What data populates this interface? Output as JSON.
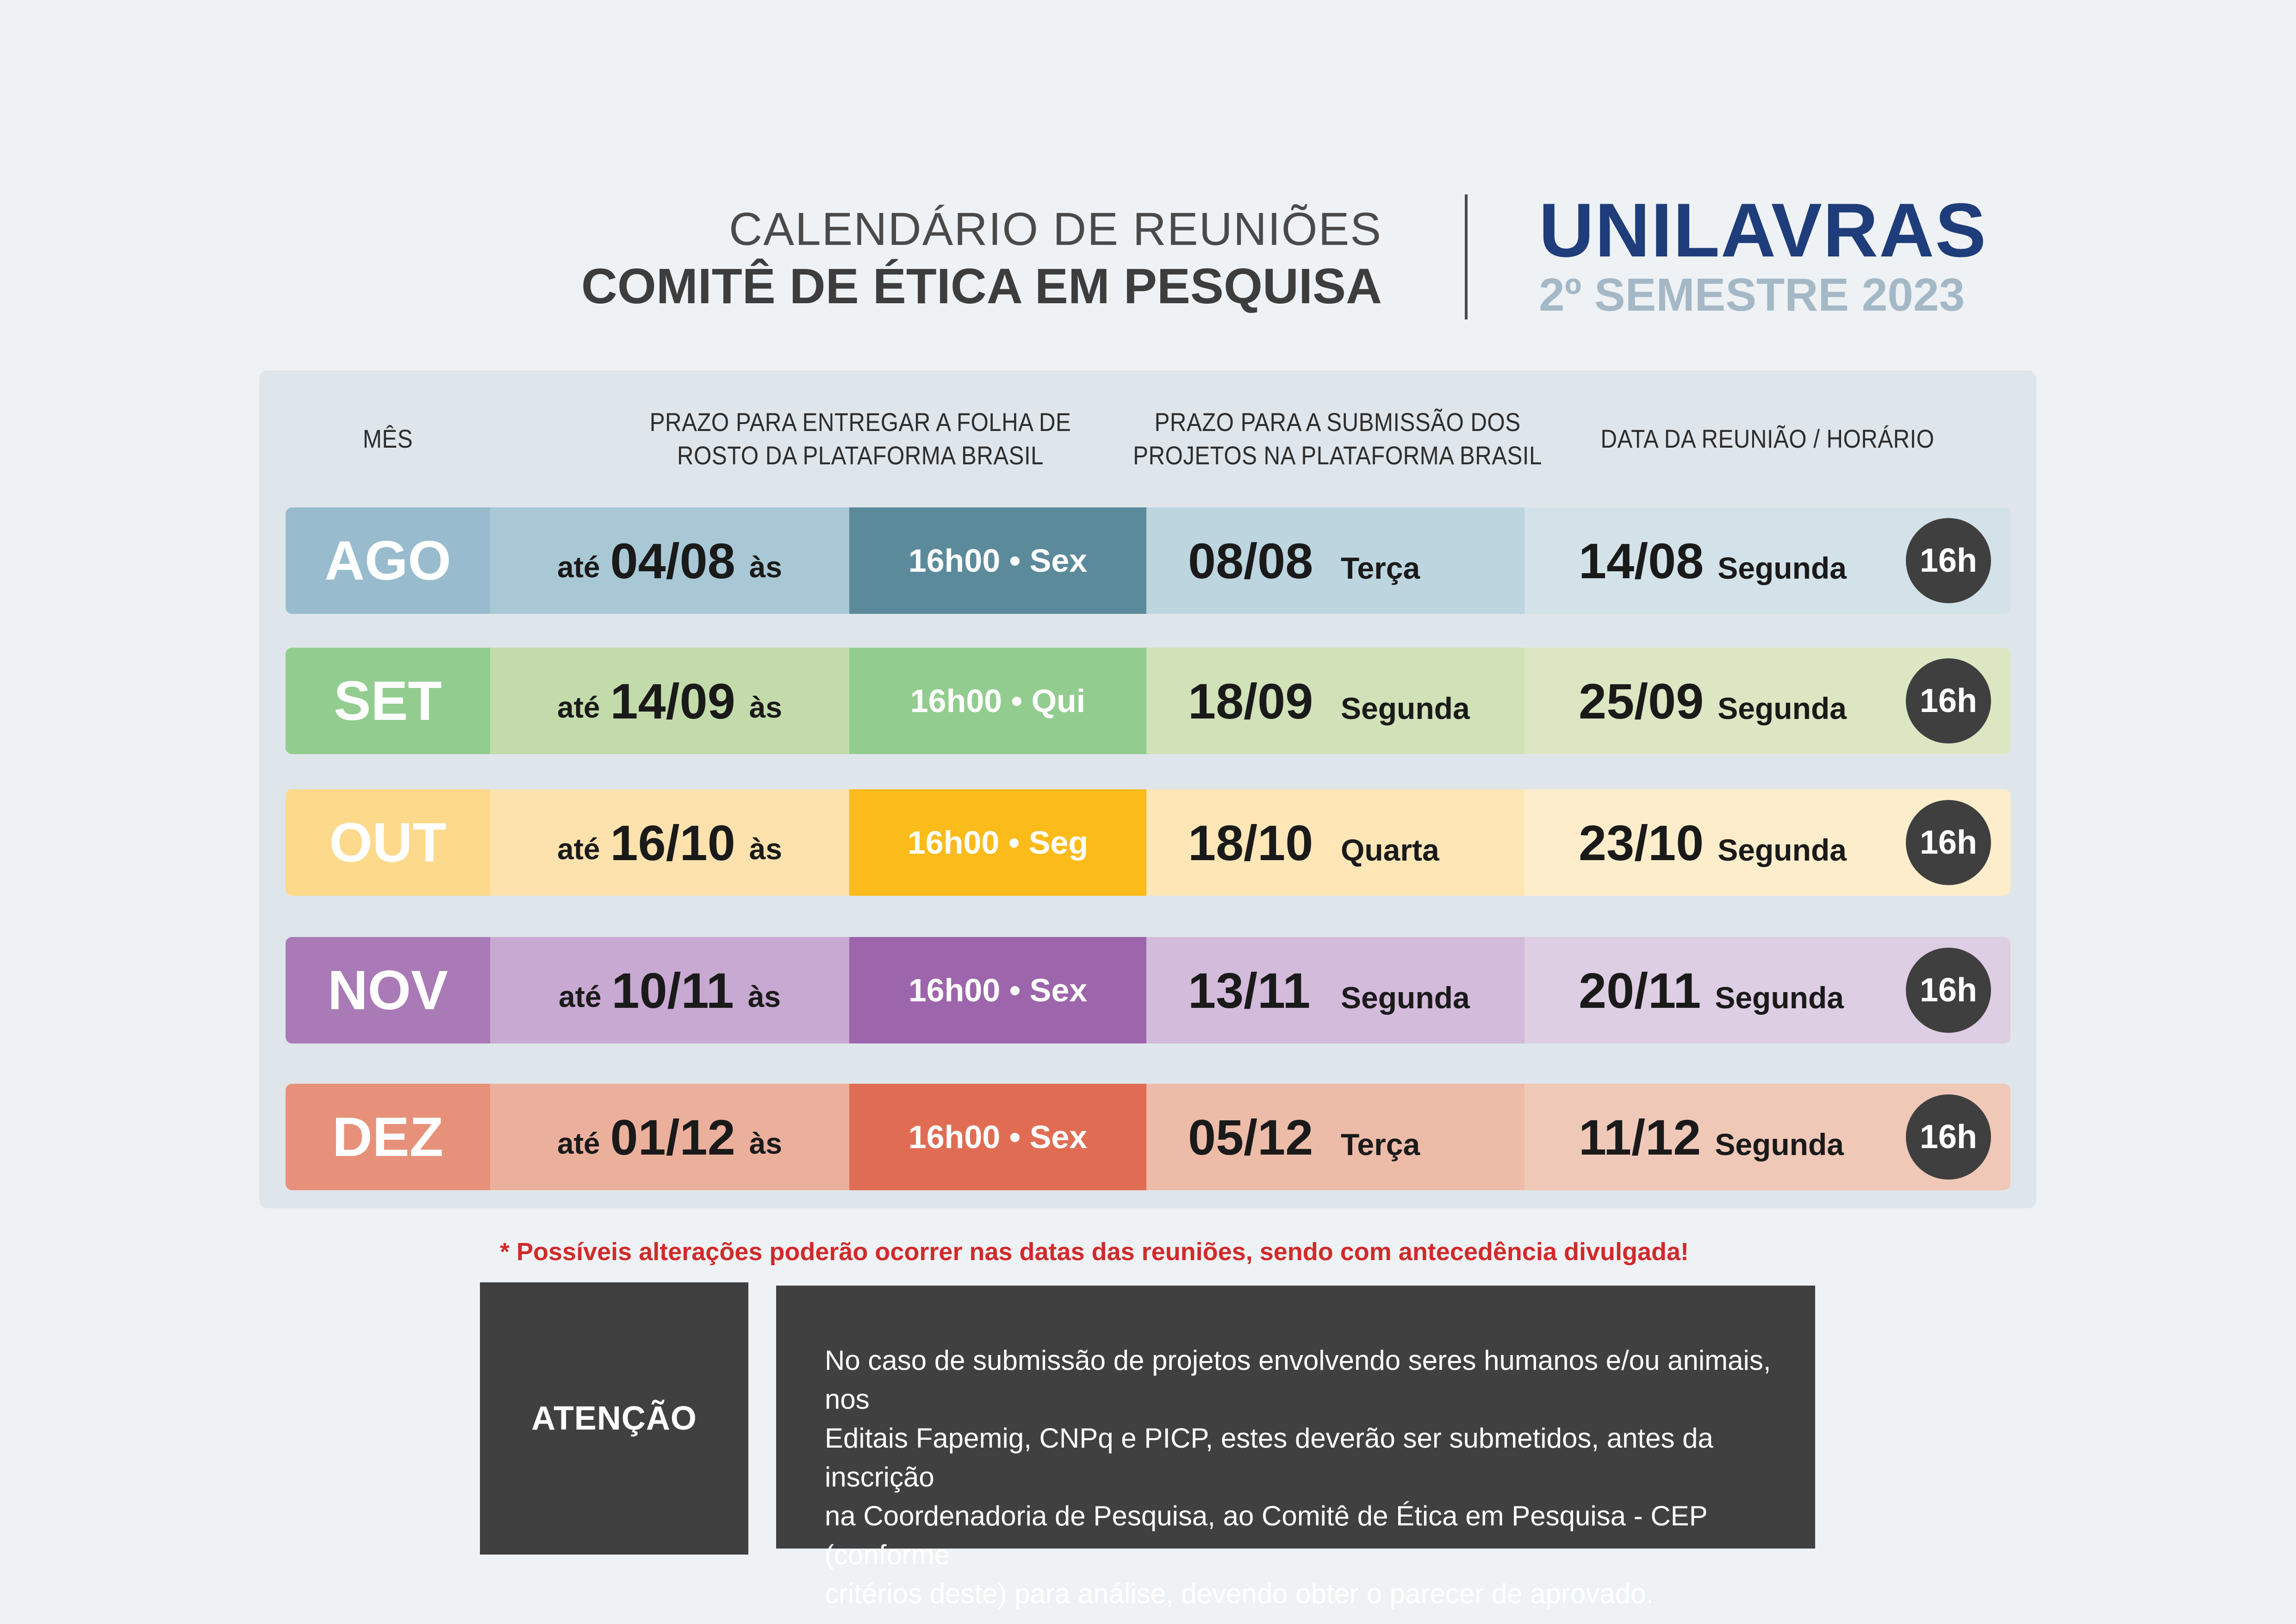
{
  "header": {
    "title_line1": "CALENDÁRIO DE REUNIÕES",
    "title_line2": "COMITÊ DE ÉTICA EM PESQUISA",
    "brand": "UNILAVRAS",
    "semester": "2º SEMESTRE 2023"
  },
  "table": {
    "columns": {
      "month": "MÊS",
      "folha_line1": "PRAZO PARA ENTREGAR A FOLHA DE",
      "folha_line2": "ROSTO DA PLATAFORMA BRASIL",
      "sub_line1": "PRAZO PARA A SUBMISSÃO DOS",
      "sub_line2": "PROJETOS NA PLATAFORMA BRASIL",
      "meeting": "DATA DA REUNIÃO / HORÁRIO"
    },
    "label_ate": "até",
    "label_as": "às",
    "rows": [
      {
        "month": "AGO",
        "folha_date": "04/08",
        "time": "16h00 • Sex",
        "sub_date": "08/08",
        "sub_day": "Terça",
        "meet_date": "14/08",
        "meet_day": "Segunda",
        "hour": "16h",
        "colors": {
          "month": "#98bccd",
          "light": "#a9c8d5",
          "time": "#5b8a9b",
          "sub": "#bcd5df",
          "meet": "#d3e2e8"
        }
      },
      {
        "month": "SET",
        "folha_date": "14/09",
        "time": "16h00 • Qui",
        "sub_date": "18/09",
        "sub_day": "Segunda",
        "meet_date": "25/09",
        "meet_day": "Segunda",
        "hour": "16h",
        "colors": {
          "month": "#92cd8f",
          "light": "#c3dbab",
          "time": "#92cd8f",
          "sub": "#d1e1b8",
          "meet": "#dce6c2"
        }
      },
      {
        "month": "OUT",
        "folha_date": "16/10",
        "time": "16h00 • Seg",
        "sub_date": "18/10",
        "sub_day": "Quarta",
        "meet_date": "23/10",
        "meet_day": "Segunda",
        "hour": "16h",
        "colors": {
          "month": "#fdd98b",
          "light": "#fee2ae",
          "time": "#fbbb1b",
          "sub": "#fee6b6",
          "meet": "#feedcb"
        }
      },
      {
        "month": "NOV",
        "folha_date": "10/11",
        "time": "16h00 • Sex",
        "sub_date": "13/11",
        "sub_day": "Segunda",
        "meet_date": "20/11",
        "meet_day": "Segunda",
        "hour": "16h",
        "colors": {
          "month": "#a97ab6",
          "light": "#c8a9d2",
          "time": "#9d65ab",
          "sub": "#d3bbdb",
          "meet": "#ddcee3"
        }
      },
      {
        "month": "DEZ",
        "folha_date": "01/12",
        "time": "16h00 • Sex",
        "sub_date": "05/12",
        "sub_day": "Terça",
        "meet_date": "11/12",
        "meet_day": "Segunda",
        "hour": "16h",
        "colors": {
          "month": "#e7917a",
          "light": "#ebb09c",
          "time": "#e06d53",
          "sub": "#edbca8",
          "meet": "#f0c8b8"
        }
      }
    ]
  },
  "notice": "* Possíveis alterações poderão ocorrer nas  datas das reuniões, sendo com antecedência divulgada!",
  "attention": {
    "label": "ATENÇÃO",
    "lines": [
      "No caso de submissão de projetos envolvendo seres humanos e/ou animais, nos",
      "Editais Fapemig, CNPq e PICP, estes deverão ser submetidos, antes da inscrição",
      "na Coordenadoria de Pesquisa, ao Comitê de Ética em Pesquisa - CEP (conforme",
      "critérios deste) para análise, devendo obter o parecer de aprovado."
    ]
  }
}
